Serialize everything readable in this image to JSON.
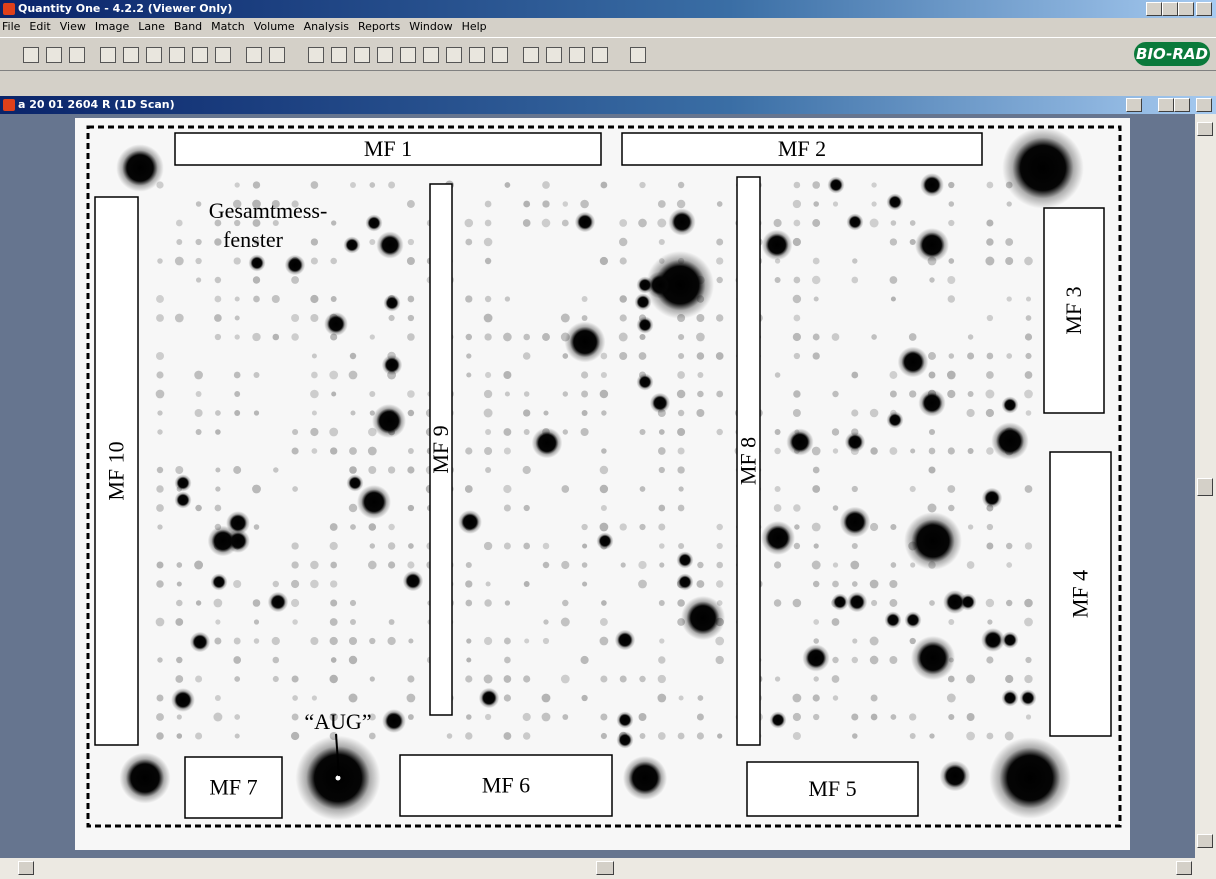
{
  "window": {
    "title": "Quantity One - 4.2.2 (Viewer Only)"
  },
  "menu": [
    "File",
    "Edit",
    "View",
    "Image",
    "Lane",
    "Band",
    "Match",
    "Volume",
    "Analysis",
    "Reports",
    "Window",
    "Help"
  ],
  "toolbar": {
    "logo": "BIO-RAD"
  },
  "document": {
    "title": "a 20 01 2604 R (1D Scan)",
    "regions": [
      {
        "label": "MF 1"
      },
      {
        "label": "MF 2"
      },
      {
        "label": "MF 3"
      },
      {
        "label": "MF 4"
      },
      {
        "label": "MF 5"
      },
      {
        "label": "MF 6"
      },
      {
        "label": "MF 7"
      },
      {
        "label": "MF 8"
      },
      {
        "label": "MF 9"
      },
      {
        "label": "MF 10"
      }
    ],
    "overall_window": [
      "Gesamtmess-",
      "fenster"
    ],
    "aug": "“AUG”"
  }
}
